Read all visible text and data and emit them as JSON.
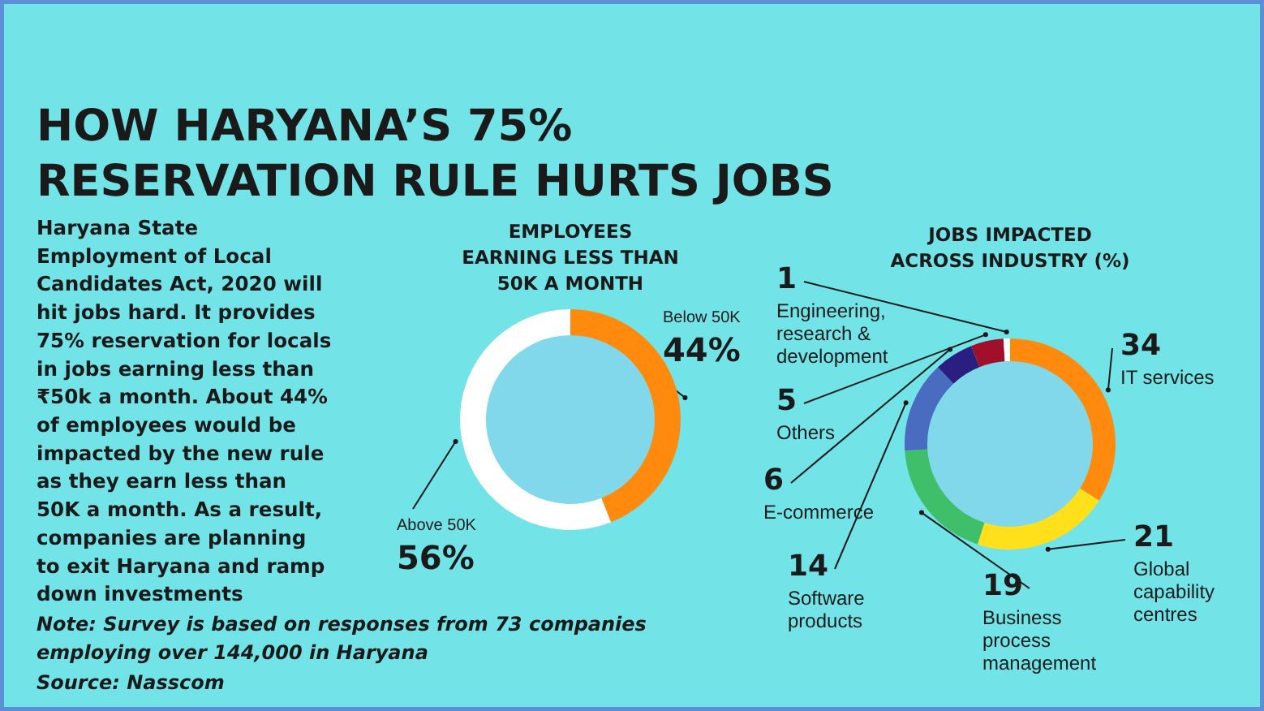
{
  "chart_data": [
    {
      "type": "other",
      "title": "HOW HARYANA’S 75%\nRESERVATION RULE HURTS JOBS",
      "annotations": [
        "Haryana State\nEmployment of Local\nCandidates Act, 2020 will\nhit jobs hard. It provides\n75% reservation for locals\nin jobs earning less than\n₹50k a month. About 44%\nof employees would be\nimpacted by the new rule\nas they earn less than\n50K a month. As a result,\ncompanies are planning\nto exit Haryana and ramp\ndown investments",
        "Note: Survey is based on responses from 73 companies\nemploying over 144,000 in Haryana",
        "Source: Nasscom"
      ]
    },
    {
      "type": "donut",
      "title": "EMPLOYEES\nEARNING LESS THAN\n50K A MONTH",
      "categories": [
        "Below 50K",
        "Above 50K"
      ],
      "values": [
        44,
        56
      ],
      "colors": [
        "#ff8a0d",
        "#ffffff"
      ],
      "value_labels": [
        "44%",
        "56%"
      ]
    },
    {
      "type": "donut",
      "title": "JOBS IMPACTED\nACROSS INDUSTRY (%)",
      "categories": [
        "IT services",
        "Global\ncapability\ncentres",
        "Business\nprocess\nmanagement",
        "Software\nproducts",
        "E-commerce",
        "Others",
        "Engineering,\nresearch &\ndevelopment"
      ],
      "values": [
        34,
        21,
        19,
        14,
        6,
        5,
        1
      ],
      "colors": [
        "#ff8a0d",
        "#ffe01a",
        "#3fbf6a",
        "#4a6cc0",
        "#2a1f80",
        "#a0102a",
        "#ffffff"
      ],
      "data_labels": true
    }
  ]
}
